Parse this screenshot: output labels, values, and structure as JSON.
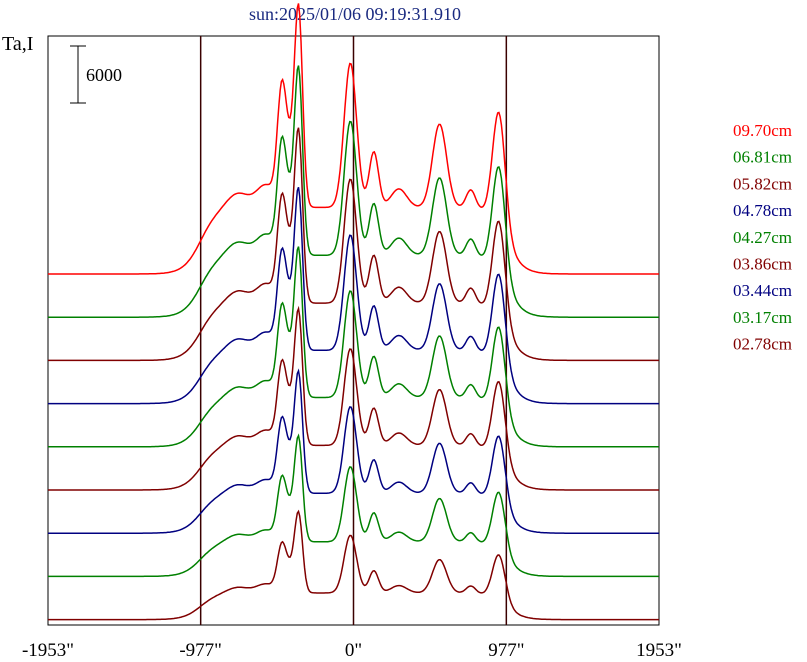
{
  "chart_data": {
    "type": "line",
    "title": "sun:2025/01/06 09:19:31.910",
    "ylabel": "Ta,I",
    "scale_bar_label": "6000",
    "scale_bar_value": 6000,
    "xlim": [
      -1953,
      1953
    ],
    "x_ticks": [
      {
        "value": -1953,
        "label": "-1953\""
      },
      {
        "value": -977,
        "label": "-977\""
      },
      {
        "value": 0,
        "label": "0\""
      },
      {
        "value": 977,
        "label": "977\""
      },
      {
        "value": 1953,
        "label": "1953\""
      }
    ],
    "vertical_lines": [
      -977,
      0,
      977
    ],
    "series": [
      {
        "name": "09.70cm",
        "color": "#ff0000",
        "base": 0,
        "amp": 1.0
      },
      {
        "name": "06.81cm",
        "color": "#008000",
        "base": 0,
        "amp": 0.93
      },
      {
        "name": "05.82cm",
        "color": "#800000",
        "base": 0,
        "amp": 0.86
      },
      {
        "name": "04.78cm",
        "color": "#000080",
        "base": 0,
        "amp": 0.8
      },
      {
        "name": "04.27cm",
        "color": "#008000",
        "base": 0,
        "amp": 0.74
      },
      {
        "name": "03.86cm",
        "color": "#800000",
        "base": 0,
        "amp": 0.67
      },
      {
        "name": "03.44cm",
        "color": "#000080",
        "base": 0,
        "amp": 0.6
      },
      {
        "name": "03.17cm",
        "color": "#008000",
        "base": 0,
        "amp": 0.52
      },
      {
        "name": "02.78cm",
        "color": "#800000",
        "base": 0,
        "amp": 0.4
      }
    ]
  }
}
